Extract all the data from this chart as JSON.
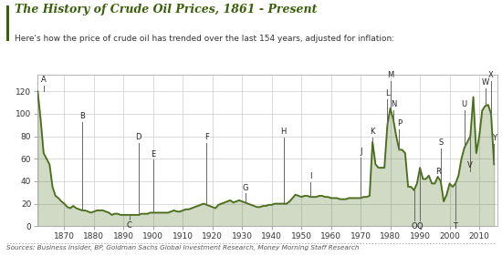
{
  "title": "The History of Crude Oil Prices, 1861 - Present",
  "subtitle": "Here's how the price of crude oil has trended over the last 154 years, adjusted for inflation:",
  "sources": "Sources: Business Insider, BP, Goldman Sachs Global Investment Research, Money Morning Staff Research",
  "title_color": "#3a5f0b",
  "line_color": "#4a6e1a",
  "fill_color": "#4a6e1a",
  "bg_color": "#ffffff",
  "grid_color": "#cccccc",
  "label_color": "#333333",
  "ylabel_ticks": [
    0,
    20,
    40,
    60,
    80,
    100,
    120
  ],
  "xlim": [
    1861,
    2016
  ],
  "ylim": [
    0,
    135
  ],
  "xticks": [
    1870,
    1880,
    1890,
    1900,
    1910,
    1920,
    1930,
    1940,
    1950,
    1960,
    1970,
    1980,
    1990,
    2000,
    2010
  ],
  "years": [
    1861,
    1862,
    1863,
    1864,
    1865,
    1866,
    1867,
    1868,
    1869,
    1870,
    1871,
    1872,
    1873,
    1874,
    1875,
    1876,
    1877,
    1878,
    1879,
    1880,
    1881,
    1882,
    1883,
    1884,
    1885,
    1886,
    1887,
    1888,
    1889,
    1890,
    1891,
    1892,
    1893,
    1894,
    1895,
    1896,
    1897,
    1898,
    1899,
    1900,
    1901,
    1902,
    1903,
    1904,
    1905,
    1906,
    1907,
    1908,
    1909,
    1910,
    1911,
    1912,
    1913,
    1914,
    1915,
    1916,
    1917,
    1918,
    1919,
    1920,
    1921,
    1922,
    1923,
    1924,
    1925,
    1926,
    1927,
    1928,
    1929,
    1930,
    1931,
    1932,
    1933,
    1934,
    1935,
    1936,
    1937,
    1938,
    1939,
    1940,
    1941,
    1942,
    1943,
    1944,
    1945,
    1946,
    1947,
    1948,
    1949,
    1950,
    1951,
    1952,
    1953,
    1954,
    1955,
    1956,
    1957,
    1958,
    1959,
    1960,
    1961,
    1962,
    1963,
    1964,
    1965,
    1966,
    1967,
    1968,
    1969,
    1970,
    1971,
    1972,
    1973,
    1974,
    1975,
    1976,
    1977,
    1978,
    1979,
    1980,
    1981,
    1982,
    1983,
    1984,
    1985,
    1986,
    1987,
    1988,
    1989,
    1990,
    1991,
    1992,
    1993,
    1994,
    1995,
    1996,
    1997,
    1998,
    1999,
    2000,
    2001,
    2002,
    2003,
    2004,
    2005,
    2006,
    2007,
    2008,
    2009,
    2010,
    2011,
    2012,
    2013,
    2014,
    2015
  ],
  "prices": [
    120,
    95,
    65,
    60,
    55,
    35,
    27,
    25,
    22,
    20,
    17,
    16,
    18,
    16,
    15,
    14,
    14,
    13,
    12,
    13,
    14,
    14,
    14,
    13,
    12,
    10,
    11,
    11,
    10,
    10,
    10,
    10,
    10,
    10,
    10,
    11,
    11,
    11,
    12,
    12,
    12,
    12,
    12,
    12,
    12,
    13,
    14,
    13,
    13,
    14,
    15,
    15,
    16,
    17,
    18,
    19,
    20,
    19,
    18,
    17,
    16,
    19,
    20,
    21,
    22,
    23,
    21,
    22,
    23,
    22,
    21,
    20,
    19,
    18,
    17,
    17,
    18,
    18,
    19,
    19,
    20,
    20,
    20,
    20,
    20,
    22,
    25,
    28,
    27,
    26,
    27,
    27,
    26,
    26,
    26,
    27,
    27,
    26,
    26,
    25,
    25,
    25,
    24,
    24,
    24,
    25,
    25,
    25,
    25,
    25,
    26,
    26,
    27,
    75,
    55,
    52,
    52,
    52,
    90,
    105,
    95,
    80,
    68,
    68,
    65,
    35,
    35,
    32,
    38,
    52,
    42,
    42,
    45,
    38,
    38,
    44,
    40,
    22,
    28,
    38,
    35,
    38,
    45,
    60,
    70,
    75,
    80,
    115,
    65,
    80,
    103,
    107,
    108,
    100,
    55
  ],
  "annotations": [
    {
      "label": "A",
      "year": 1861,
      "ann_year": 1863,
      "ann_price": 125
    },
    {
      "label": "B",
      "year": 1876,
      "ann_year": 1876,
      "ann_price": 93
    },
    {
      "label": "C",
      "year": 1892,
      "ann_year": 1892,
      "ann_price": 6,
      "va": "top"
    },
    {
      "label": "D",
      "year": 1895,
      "ann_year": 1895,
      "ann_price": 74
    },
    {
      "label": "E",
      "year": 1900,
      "ann_year": 1900,
      "ann_price": 59
    },
    {
      "label": "F",
      "year": 1918,
      "ann_year": 1918,
      "ann_price": 74
    },
    {
      "label": "G",
      "year": 1931,
      "ann_year": 1931,
      "ann_price": 29
    },
    {
      "label": "H",
      "year": 1944,
      "ann_year": 1944,
      "ann_price": 79
    },
    {
      "label": "I",
      "year": 1953,
      "ann_year": 1953,
      "ann_price": 39
    },
    {
      "label": "J",
      "year": 1970,
      "ann_year": 1970,
      "ann_price": 61
    },
    {
      "label": "K",
      "year": 1974,
      "ann_year": 1974,
      "ann_price": 79
    },
    {
      "label": "L",
      "year": 1979,
      "ann_year": 1979,
      "ann_price": 113
    },
    {
      "label": "M",
      "year": 1980,
      "ann_year": 1980,
      "ann_price": 129
    },
    {
      "label": "N",
      "year": 1981,
      "ann_year": 1981,
      "ann_price": 103
    },
    {
      "label": "O",
      "year": 1988,
      "ann_year": 1988,
      "ann_price": 5,
      "va": "top"
    },
    {
      "label": "P",
      "year": 1983,
      "ann_year": 1983,
      "ann_price": 86
    },
    {
      "label": "Q",
      "year": 1990,
      "ann_year": 1990,
      "ann_price": 5,
      "va": "top"
    },
    {
      "label": "R",
      "year": 1996,
      "ann_year": 1996,
      "ann_price": 43
    },
    {
      "label": "S",
      "year": 1997,
      "ann_year": 1997,
      "ann_price": 69
    },
    {
      "label": "T",
      "year": 2002,
      "ann_year": 2002,
      "ann_price": 5,
      "va": "top"
    },
    {
      "label": "U",
      "year": 2005,
      "ann_year": 2005,
      "ann_price": 103
    },
    {
      "label": "V",
      "year": 2007,
      "ann_year": 2007,
      "ann_price": 49
    },
    {
      "label": "W",
      "year": 2012,
      "ann_year": 2012,
      "ann_price": 123
    },
    {
      "label": "X",
      "year": 2014,
      "ann_year": 2014,
      "ann_price": 129
    },
    {
      "label": "Y",
      "year": 2015,
      "ann_year": 2015,
      "ann_price": 73
    }
  ],
  "ann_line_color": "#666666",
  "ann_text_color": "#222222"
}
